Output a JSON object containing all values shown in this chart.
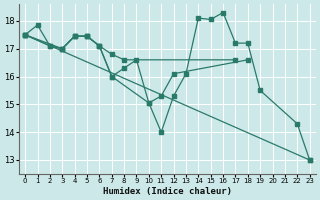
{
  "xlabel": "Humidex (Indice chaleur)",
  "bg_color": "#cce8e8",
  "grid_color": "#ffffff",
  "line_color": "#2a7a6a",
  "xlim": [
    -0.5,
    23.5
  ],
  "ylim": [
    12.5,
    18.6
  ],
  "yticks": [
    13,
    14,
    15,
    16,
    17,
    18
  ],
  "xticks": [
    0,
    1,
    2,
    3,
    4,
    5,
    6,
    7,
    8,
    9,
    10,
    11,
    12,
    13,
    14,
    15,
    16,
    17,
    18,
    19,
    20,
    21,
    22,
    23
  ],
  "line1_x": [
    0,
    1,
    2,
    3,
    4,
    5,
    6,
    7,
    8,
    9,
    10,
    11,
    12,
    13,
    14,
    15,
    16,
    17,
    18,
    19,
    22,
    23
  ],
  "line1_y": [
    17.5,
    17.85,
    17.1,
    17.0,
    17.45,
    17.45,
    17.1,
    16.0,
    16.3,
    16.6,
    15.05,
    14.0,
    15.3,
    16.1,
    18.1,
    18.05,
    18.3,
    17.2,
    17.2,
    15.5,
    14.3,
    13.0
  ],
  "line2_x": [
    0,
    2,
    3,
    4,
    5,
    6,
    7,
    8,
    17
  ],
  "line2_y": [
    17.5,
    17.1,
    17.0,
    17.45,
    17.45,
    17.1,
    16.8,
    16.6,
    16.6
  ],
  "line3_x": [
    0,
    3,
    4,
    5,
    6,
    7,
    10,
    11,
    12,
    18
  ],
  "line3_y": [
    17.5,
    17.0,
    17.45,
    17.45,
    17.1,
    16.0,
    15.05,
    15.3,
    16.1,
    16.6
  ],
  "line4_x": [
    0,
    23
  ],
  "line4_y": [
    17.5,
    13.0
  ]
}
